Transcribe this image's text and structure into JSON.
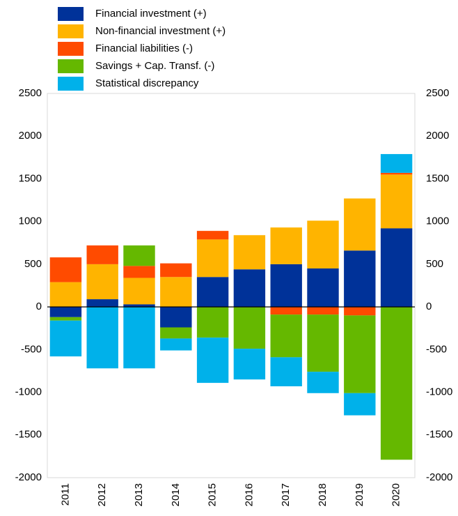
{
  "chart_data": {
    "type": "bar",
    "stacked": true,
    "categories": [
      "2011",
      "2012",
      "2013",
      "2014",
      "2015",
      "2016",
      "2017",
      "2018",
      "2019",
      "2020"
    ],
    "series": [
      {
        "name": "Financial investment (+)",
        "color": "#003299",
        "values": [
          -120,
          90,
          30,
          -240,
          350,
          440,
          500,
          450,
          660,
          920
        ]
      },
      {
        "name": "Non-financial investment (+)",
        "color": "#ffb400",
        "values": [
          290,
          410,
          310,
          350,
          440,
          400,
          430,
          560,
          610,
          630
        ]
      },
      {
        "name": "Financial liabilities (-)",
        "color": "#ff4b00",
        "values": [
          290,
          220,
          140,
          160,
          100,
          0,
          -90,
          -90,
          -100,
          20
        ]
      },
      {
        "name": "Savings + Cap. Transf. (-)",
        "color": "#65b800",
        "values": [
          -40,
          0,
          240,
          -130,
          -360,
          -490,
          -500,
          -670,
          -910,
          -1790
        ]
      },
      {
        "name": "Statistical discrepancy",
        "color": "#00b1ea",
        "values": [
          -420,
          -720,
          -720,
          -140,
          -530,
          -360,
          -340,
          -250,
          -260,
          220
        ]
      }
    ],
    "ylim": [
      -2000,
      2500
    ],
    "yticks": [
      -2000,
      -1500,
      -1000,
      -500,
      0,
      500,
      1000,
      1500,
      2000,
      2500
    ],
    "y2lim": [
      -2000,
      2500
    ],
    "y2ticks": [
      -2000,
      -1500,
      -1000,
      -500,
      0,
      500,
      1000,
      1500,
      2000,
      2500
    ],
    "legend": "top-left",
    "grid": false
  }
}
